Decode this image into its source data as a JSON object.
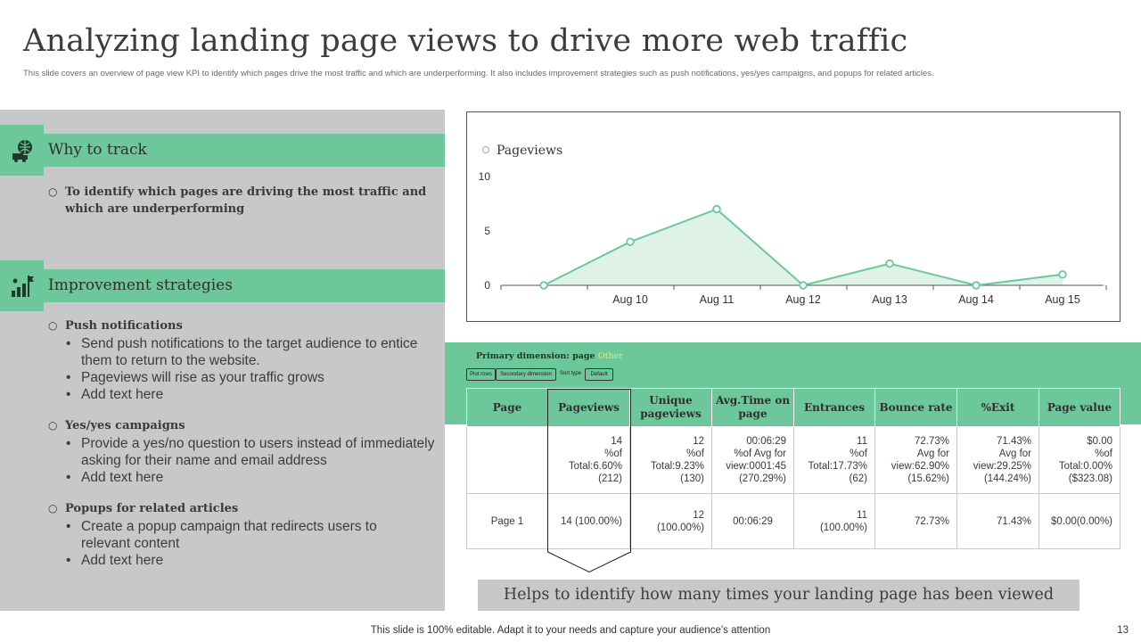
{
  "title": "Analyzing landing page views to drive more web traffic",
  "subtitle": "This slide covers an overview of page view KPI to identify which pages drive the most traffic and which are underperforming.  It also includes improvement strategies such as push notifications, yes/yes campaigns, and popups for related articles.",
  "why": {
    "title": "Why to track",
    "text_line1": "To identify which pages are driving the most traffic and",
    "text_line2": "which are underperforming"
  },
  "improve": {
    "title": "Improvement strategies",
    "groups": [
      {
        "heading": "Push notifications",
        "items": [
          "Send push notifications to the target audience to entice them to return to the website.",
          "Pageviews will rise as your traffic grows",
          "Add text here"
        ]
      },
      {
        "heading": "Yes/yes campaigns",
        "items": [
          "Provide a yes/no question to users instead of immediately asking for their name and email address",
          "Add text here"
        ]
      },
      {
        "heading": "Popups for related articles",
        "items": [
          "Create a popup campaign that redirects users to relevant content",
          "Add text here"
        ]
      }
    ]
  },
  "chart_data": {
    "type": "area",
    "series": [
      {
        "name": "Pageviews",
        "values": [
          0,
          4,
          7,
          0,
          2,
          0,
          1
        ]
      }
    ],
    "x": [
      "",
      "Aug 10",
      "Aug 11",
      "Aug 12",
      "Aug 13",
      "Aug 14",
      "Aug 15"
    ],
    "yticks": [
      0,
      5,
      10
    ],
    "ylim": [
      0,
      10
    ],
    "legend": "top-left",
    "color": "#6cc79b",
    "fill": "#dff2e8"
  },
  "table": {
    "dimension_label": "Primary dimension: page",
    "dimension_other": "Other",
    "buttons": [
      "Plot rows",
      "Secondary dimension",
      "Sort type",
      "Default"
    ],
    "headers": [
      "Page",
      "Pageviews",
      "Unique pageviews",
      "Avg.Time on page",
      "Entrances",
      "Bounce rate",
      "%Exit",
      "Page value"
    ],
    "totals": [
      [
        "",
        ""
      ],
      [
        "14",
        "%of",
        "Total:6.60%",
        "(212)"
      ],
      [
        "12",
        "%of",
        "Total:9.23%",
        "(130)"
      ],
      [
        "00:06:29",
        "%of Avg for",
        "view:0001:45",
        "(270.29%)"
      ],
      [
        "11",
        "%of",
        "Total:17.73%",
        "(62)"
      ],
      [
        "72.73%",
        "Avg for",
        "view:62.90%",
        "(15.62%)"
      ],
      [
        "71.43%",
        "Avg for",
        "view:29.25%",
        "(144.24%)"
      ],
      [
        "$0.00",
        "%of",
        "Total:0.00%",
        "($323.08)"
      ]
    ],
    "row": [
      [
        "Page 1"
      ],
      [
        "14 (100.00%)"
      ],
      [
        "12",
        "(100.00%)"
      ],
      [
        "00:06:29"
      ],
      [
        "11",
        "(100.00%)"
      ],
      [
        "72.73%"
      ],
      [
        "71.43%"
      ],
      [
        "$0.00(0.00%)"
      ]
    ]
  },
  "callout": "Helps to identify how many times your landing page has been viewed",
  "footer": "This slide is 100% editable. Adapt it to your needs and capture your audience's attention",
  "page_number": "13"
}
